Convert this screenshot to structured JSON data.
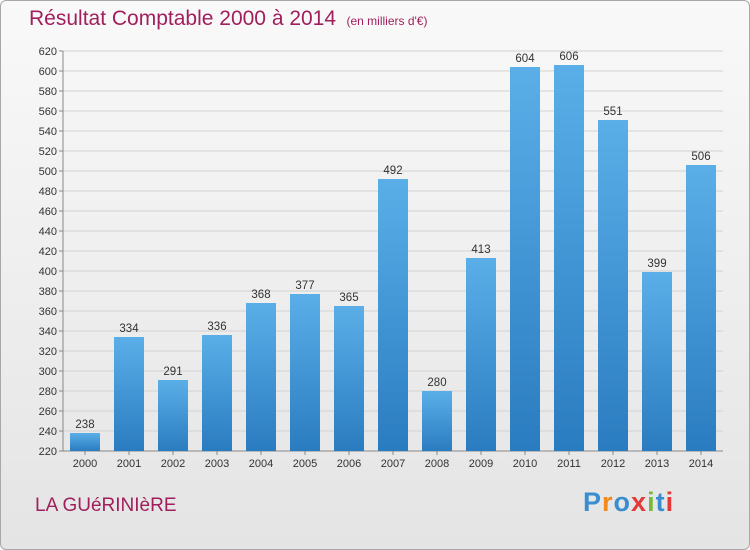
{
  "chart_data": {
    "type": "bar",
    "title": "Résultat Comptable 2000 à 2014",
    "subtitle": "(en milliers d'€)",
    "categories": [
      "2000",
      "2001",
      "2002",
      "2003",
      "2004",
      "2005",
      "2006",
      "2007",
      "2008",
      "2009",
      "2010",
      "2011",
      "2012",
      "2013",
      "2014"
    ],
    "values": [
      238,
      334,
      291,
      336,
      368,
      377,
      365,
      492,
      280,
      413,
      604,
      606,
      551,
      399,
      506
    ],
    "ylim": [
      220,
      620
    ],
    "ytick_step": 20,
    "grid": true,
    "bar_color_top": "#5aafe8",
    "bar_color_bottom": "#2a7cc0",
    "text_color": "#a01f5c"
  },
  "footer": {
    "place_name": "LA GUéRINIèRE",
    "logo_text": "Proxiti",
    "logo_colors": [
      "#3a8ed0",
      "#f08a1c",
      "#3a8ed0",
      "#e23a3a",
      "#7ab83a",
      "#3a8ed0",
      "#e23a3a"
    ]
  }
}
